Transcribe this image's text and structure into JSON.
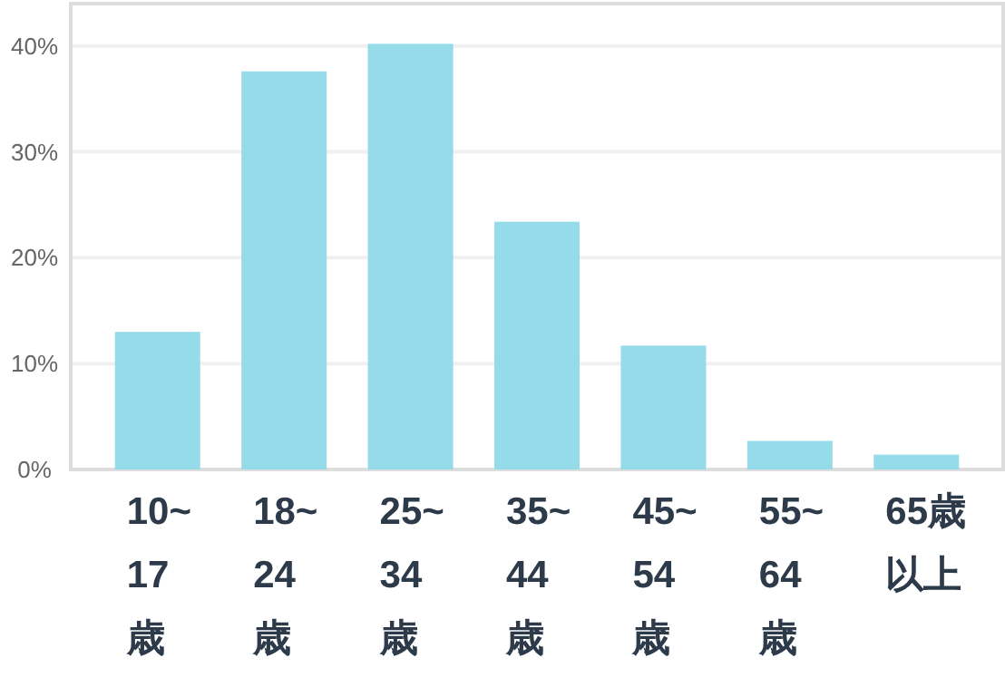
{
  "chart_data": {
    "type": "bar",
    "categories": [
      "10~\n17\n歳",
      "18~\n24\n歳",
      "25~\n34\n歳",
      "35~\n44\n歳",
      "45~\n54\n歳",
      "55~\n64\n歳",
      "65歳以上"
    ],
    "values": [
      13.0,
      37.6,
      40.2,
      23.4,
      11.7,
      2.7,
      1.4
    ],
    "color": "#95dbea",
    "ylim": [
      0,
      44
    ],
    "yticks": [
      {
        "value": 0,
        "label": "0%"
      },
      {
        "value": 10,
        "label": "10%"
      },
      {
        "value": 20,
        "label": "20%"
      },
      {
        "value": 30,
        "label": "30%"
      },
      {
        "value": 40,
        "label": "40%"
      }
    ],
    "grid": "y"
  }
}
